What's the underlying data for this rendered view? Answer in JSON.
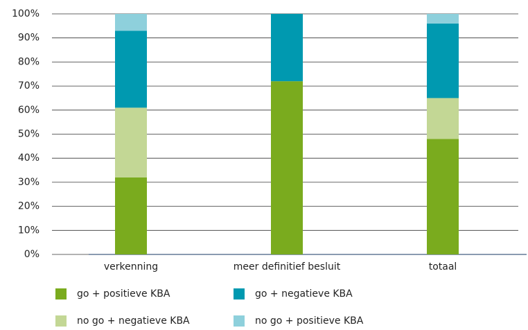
{
  "chart_data": {
    "type": "stacked_bar",
    "categories": [
      "verkenning",
      "meer definitief besluit",
      "totaal"
    ],
    "series": [
      {
        "name": "go + positieve KBA",
        "color": "#7aab1e",
        "values": [
          32,
          72,
          48
        ]
      },
      {
        "name": "no go + negatieve KBA",
        "color": "#c3d795",
        "values": [
          29,
          0,
          17
        ]
      },
      {
        "name": "go + negatieve KBA",
        "color": "#0099b0",
        "values": [
          32,
          28,
          31
        ]
      },
      {
        "name": "no go + positieve KBA",
        "color": "#8ed0dc",
        "values": [
          7,
          0,
          4
        ]
      }
    ],
    "ylim": [
      0,
      100
    ],
    "yticks": [
      {
        "value": 0,
        "label": "0%"
      },
      {
        "value": 10,
        "label": "10%"
      },
      {
        "value": 20,
        "label": "20%"
      },
      {
        "value": 30,
        "label": "30%"
      },
      {
        "value": 40,
        "label": "40%"
      },
      {
        "value": 50,
        "label": "50%"
      },
      {
        "value": 60,
        "label": "60%"
      },
      {
        "value": 70,
        "label": "70%"
      },
      {
        "value": 80,
        "label": "80%"
      },
      {
        "value": 90,
        "label": "90%"
      },
      {
        "value": 100,
        "label": "100%"
      }
    ],
    "grid": true
  }
}
